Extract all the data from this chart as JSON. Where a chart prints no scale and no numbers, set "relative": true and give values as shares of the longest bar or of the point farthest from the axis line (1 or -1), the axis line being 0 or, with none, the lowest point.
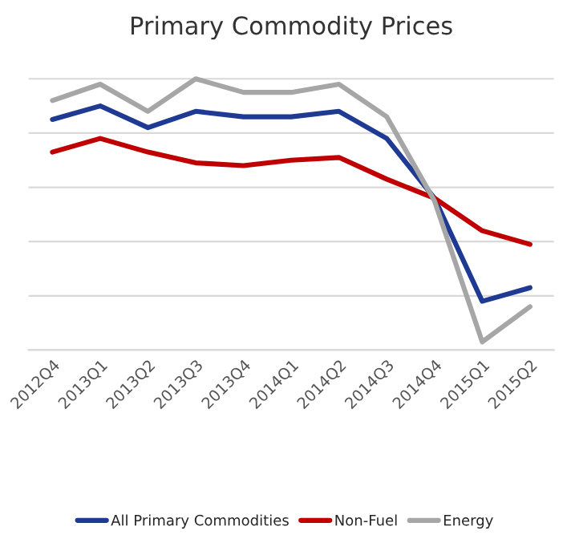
{
  "chart_data": {
    "type": "line",
    "title": "Primary Commodity Prices",
    "relative": true,
    "categories": [
      "2012Q4",
      "2013Q1",
      "2013Q2",
      "2013Q3",
      "2013Q4",
      "2014Q1",
      "2014Q2",
      "2014Q3",
      "2014Q4",
      "2015Q1",
      "2015Q2"
    ],
    "series": [
      {
        "name": "All Primary Commodities",
        "color": "#1f3a93",
        "values": [
          0.85,
          0.9,
          0.82,
          0.88,
          0.86,
          0.86,
          0.88,
          0.78,
          0.56,
          0.18,
          0.23
        ]
      },
      {
        "name": "Non-Fuel",
        "color": "#c00000",
        "values": [
          0.73,
          0.78,
          0.73,
          0.69,
          0.68,
          0.7,
          0.71,
          0.63,
          0.56,
          0.44,
          0.39
        ]
      },
      {
        "name": "Energy",
        "color": "#a6a6a6",
        "values": [
          0.92,
          0.98,
          0.88,
          1.0,
          0.95,
          0.95,
          0.98,
          0.86,
          0.55,
          0.03,
          0.16
        ]
      }
    ],
    "grid": "y",
    "legend": "bottom",
    "marker": "none",
    "line_style": "solid"
  }
}
